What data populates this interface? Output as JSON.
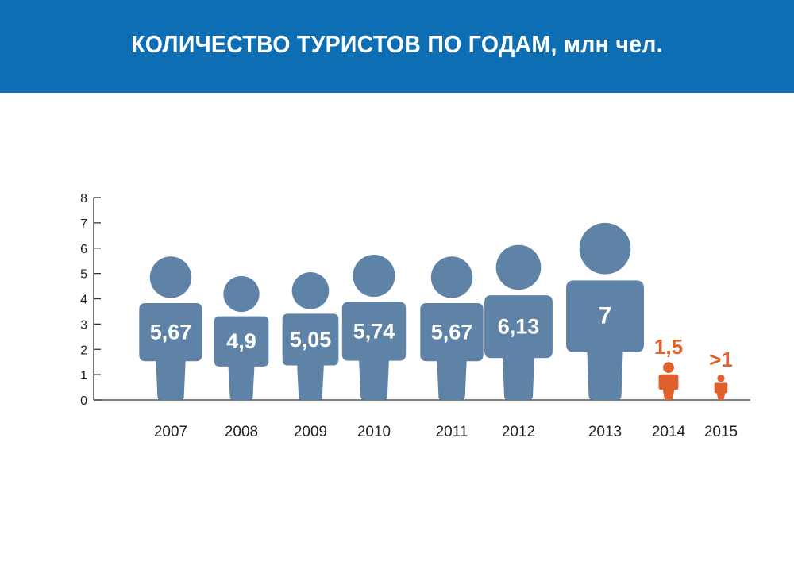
{
  "title": "КОЛИЧЕСТВО ТУРИСТОВ ПО ГОДАМ, млн чел.",
  "colors": {
    "header": "#0d6eb4",
    "figure": "#5f83a7",
    "highlight": "#e0612e",
    "axis": "#333333"
  },
  "chart_data": {
    "type": "bar",
    "title": "КОЛИЧЕСТВО ТУРИСТОВ ПО ГОДАМ, млн чел.",
    "xlabel": "",
    "ylabel": "",
    "ylim": [
      0,
      8
    ],
    "yticks": [
      "0",
      "1",
      "2",
      "3",
      "4",
      "5",
      "6",
      "7",
      "8"
    ],
    "grid": false,
    "mark": "person-icon",
    "categories": [
      "2007",
      "2008",
      "2009",
      "2010",
      "2011",
      "2012",
      "2013",
      "2014",
      "2015"
    ],
    "values": [
      5.67,
      4.9,
      5.05,
      5.74,
      5.67,
      6.13,
      7,
      1.5,
      1
    ],
    "labels": [
      "5,67",
      "4,9",
      "5,05",
      "5,74",
      "5,67",
      "6,13",
      "7",
      "1,5",
      ">1"
    ],
    "highlighted": [
      false,
      false,
      false,
      false,
      false,
      false,
      false,
      true,
      true
    ]
  }
}
